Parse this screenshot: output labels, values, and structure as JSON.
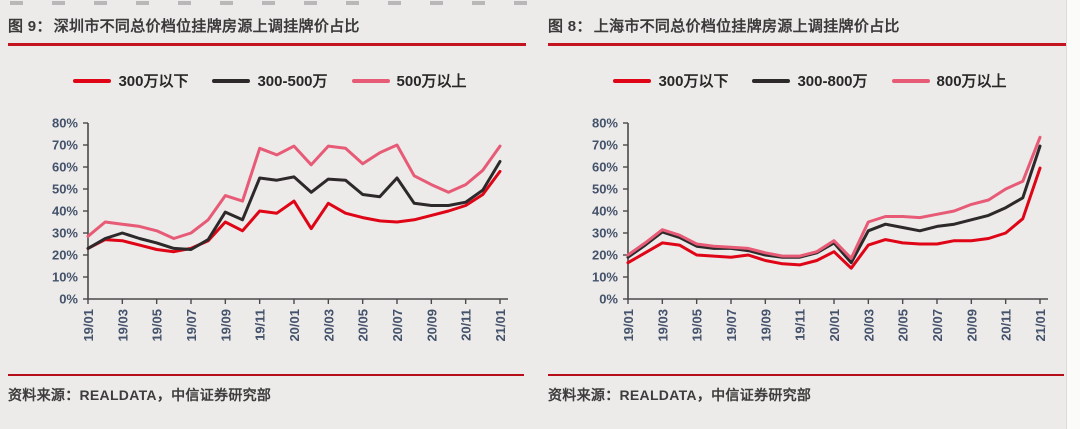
{
  "page": {
    "background": "#ecebe9",
    "accent_red": "#c41420",
    "axis_label_color": "#44526b"
  },
  "chart_data": [
    {
      "type": "line",
      "figure_label": "图 9：",
      "title": "深圳市不同总价档位挂牌房源上调挂牌价占比",
      "categories": [
        "19/01",
        "19/02",
        "19/03",
        "19/04",
        "19/05",
        "19/06",
        "19/07",
        "19/08",
        "19/09",
        "19/10",
        "19/11",
        "19/12",
        "20/01",
        "20/02",
        "20/03",
        "20/04",
        "20/05",
        "20/06",
        "20/07",
        "20/08",
        "20/09",
        "20/10",
        "20/11",
        "20/12",
        "21/01"
      ],
      "x_tick_labels": [
        "19/01",
        "19/03",
        "19/05",
        "19/07",
        "19/09",
        "19/11",
        "20/01",
        "20/03",
        "20/05",
        "20/07",
        "20/09",
        "20/11",
        "21/01"
      ],
      "y_tick_labels": [
        "80%",
        "70%",
        "60%",
        "50%",
        "40%",
        "30%",
        "20%",
        "10%",
        "0%"
      ],
      "ylim": [
        0,
        80
      ],
      "grid": false,
      "legend_position": "top",
      "series": [
        {
          "name": "300万以下",
          "color": "#df0516",
          "values": [
            23,
            27,
            26.5,
            24.5,
            22.5,
            21.5,
            23,
            26.5,
            35,
            31,
            40,
            39,
            44.5,
            32,
            43.5,
            39,
            37,
            35.5,
            35,
            36,
            38,
            40,
            42.5,
            47.5,
            58
          ]
        },
        {
          "name": "300-500万",
          "color": "#2d292a",
          "values": [
            23,
            27.5,
            30,
            27.5,
            25.5,
            23,
            22.5,
            27,
            39.5,
            36,
            55,
            54,
            55.5,
            48.5,
            54.5,
            54,
            47.5,
            46.5,
            55,
            43.5,
            42.5,
            42.5,
            44,
            49.5,
            62.5
          ]
        },
        {
          "name": "500万以上",
          "color": "#e75b77",
          "values": [
            28.5,
            35,
            34,
            33,
            31,
            27.5,
            30,
            36,
            47,
            44.5,
            68.5,
            65.5,
            69.5,
            61,
            69.5,
            68.5,
            61.5,
            66.5,
            70,
            56,
            52,
            48.5,
            52,
            58.5,
            69.5
          ]
        }
      ],
      "source": "资料来源：REALDATA，中信证券研究部"
    },
    {
      "type": "line",
      "figure_label": "图 8：",
      "title": "上海市不同总价档位挂牌房源上调挂牌价占比",
      "categories": [
        "19/01",
        "19/02",
        "19/03",
        "19/04",
        "19/05",
        "19/06",
        "19/07",
        "19/08",
        "19/09",
        "19/10",
        "19/11",
        "19/12",
        "20/01",
        "20/02",
        "20/03",
        "20/04",
        "20/05",
        "20/06",
        "20/07",
        "20/08",
        "20/09",
        "20/10",
        "20/11",
        "20/12",
        "21/01"
      ],
      "x_tick_labels": [
        "19/01",
        "19/03",
        "19/05",
        "19/07",
        "19/09",
        "19/11",
        "20/01",
        "20/03",
        "20/05",
        "20/07",
        "20/09",
        "20/11",
        "21/01"
      ],
      "y_tick_labels": [
        "80%",
        "70%",
        "60%",
        "50%",
        "40%",
        "30%",
        "20%",
        "10%",
        "0%"
      ],
      "ylim": [
        0,
        80
      ],
      "grid": false,
      "legend_position": "top",
      "series": [
        {
          "name": "300万以下",
          "color": "#df0516",
          "values": [
            16.5,
            21,
            25.5,
            24.5,
            20,
            19.5,
            19,
            20,
            17.5,
            16,
            15.5,
            17.5,
            21.5,
            14,
            24.5,
            27,
            25.5,
            25,
            25,
            26.5,
            26.5,
            27.5,
            30,
            36.5,
            59.5
          ]
        },
        {
          "name": "300-800万",
          "color": "#2d292a",
          "values": [
            19,
            24.5,
            30.5,
            28,
            24,
            23,
            23,
            22,
            20,
            19,
            19,
            21,
            25.5,
            16.5,
            31,
            34,
            32.5,
            31,
            33,
            34,
            36,
            38,
            41.5,
            46,
            69.5
          ]
        },
        {
          "name": "800万以上",
          "color": "#e75b77",
          "values": [
            20,
            25.5,
            31.5,
            29,
            25,
            24,
            23.5,
            23,
            21,
            19.5,
            19.5,
            21.5,
            26.5,
            18.5,
            35,
            37.5,
            37.5,
            37,
            38.5,
            40,
            43,
            45,
            50,
            53.5,
            73.5
          ]
        }
      ],
      "source": "资料来源：REALDATA，中信证券研究部"
    }
  ]
}
